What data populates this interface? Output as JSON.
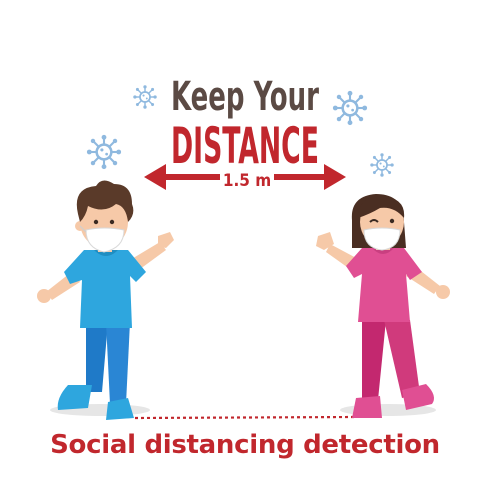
{
  "poster": {
    "headline_top": "Keep Your",
    "headline_main": "DISTANCE",
    "distance_label": "1.5 m",
    "caption": "Social distancing detection"
  },
  "colors": {
    "headline_dark": "#5b4a44",
    "accent_red": "#c1272d",
    "virus_blue": "#8fb9df",
    "boy_shirt": "#2ea6de",
    "boy_pants": "#1f7ac8",
    "girl_shirt": "#e04f93",
    "girl_pants": "#c3286f",
    "skin": "#f6c9a8",
    "boy_hair": "#5a3a29",
    "girl_hair": "#4a2e22",
    "mask": "#ffffff",
    "ground_line": "#c1272d"
  },
  "icons": [
    "virus-icon",
    "double-arrow-icon",
    "mask-icon"
  ]
}
